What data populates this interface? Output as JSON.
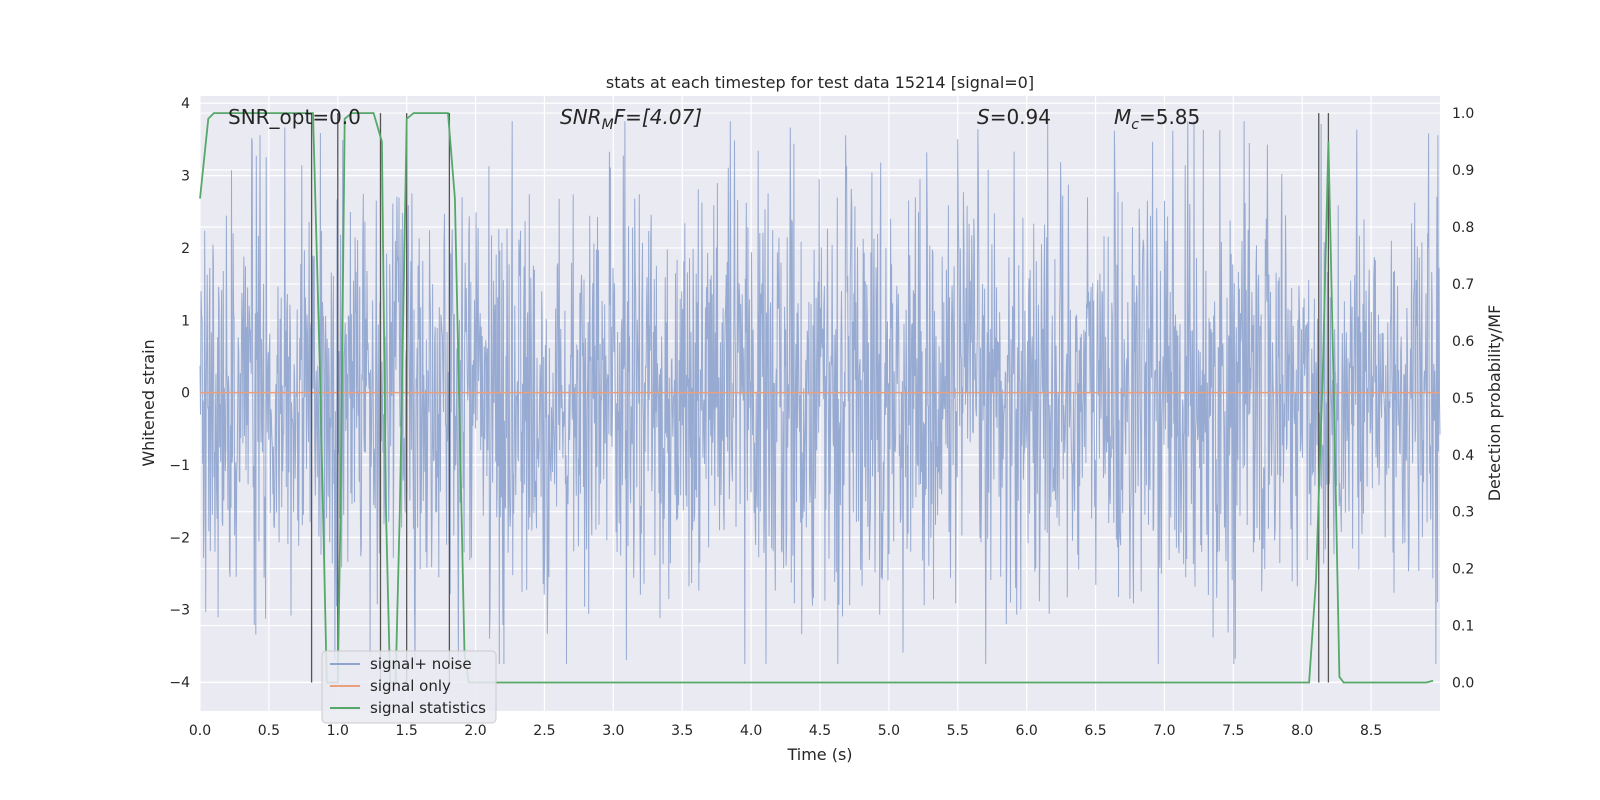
{
  "chart_data": {
    "type": "line",
    "title": "stats at each timestep for test data 15214 [signal=0]",
    "xlabel": "Time (s)",
    "ylabel": "Whitened strain",
    "y2label": "Detection probability/MF",
    "xlim": [
      0.0,
      9.0
    ],
    "ylim": [
      -4.4,
      4.1
    ],
    "y2lim": [
      -0.05,
      1.03
    ],
    "x_ticks": [
      "0.0",
      "0.5",
      "1.0",
      "1.5",
      "2.0",
      "2.5",
      "3.0",
      "3.5",
      "4.0",
      "4.5",
      "5.0",
      "5.5",
      "6.0",
      "6.5",
      "7.0",
      "7.5",
      "8.0",
      "8.5"
    ],
    "y_ticks": [
      "4",
      "3",
      "2",
      "1",
      "0",
      "−1",
      "−2",
      "−3",
      "−4"
    ],
    "y2_ticks": [
      "1.0",
      "0.9",
      "0.8",
      "0.7",
      "0.6",
      "0.5",
      "0.4",
      "0.3",
      "0.2",
      "0.1",
      "0.0"
    ],
    "grid": true,
    "legend_position": "lower-left",
    "annotations": {
      "snr_opt": "SNR_opt=0.0",
      "snr_mf_symbol": "SNR",
      "snr_mf_sub": "M",
      "snr_mf_rest": "F=[4.07]",
      "s_symbol": "S",
      "s_rest": "=0.94",
      "mc_symbol": "M",
      "mc_sub": "c",
      "mc_rest": "=5.85"
    },
    "series": [
      {
        "name": "signal+ noise",
        "color": "#8ea3cd",
        "axis": "left",
        "description_amplitude": {
          "typical_envelope": 1.7,
          "peak_max": 3.75,
          "peak_min": -3.75
        }
      },
      {
        "name": "signal only",
        "color": "#e8a07e",
        "axis": "left",
        "x": [
          0.0,
          9.0
        ],
        "y": [
          0.0,
          0.0
        ]
      },
      {
        "name": "signal statistics",
        "color": "#55a868",
        "axis": "right",
        "x": [
          0.0,
          0.06,
          0.1,
          0.2,
          0.3,
          0.4,
          0.5,
          0.6,
          0.7,
          0.78,
          0.82,
          0.87,
          0.92,
          0.96,
          1.0,
          1.02,
          1.05,
          1.1,
          1.15,
          1.2,
          1.26,
          1.32,
          1.35,
          1.38,
          1.42,
          1.45,
          1.5,
          1.55,
          1.6,
          1.7,
          1.8,
          1.85,
          1.92,
          1.95,
          2.0,
          3.0,
          4.0,
          5.0,
          6.0,
          7.0,
          8.0,
          8.05,
          8.1,
          8.15,
          8.19,
          8.23,
          8.27,
          8.3,
          8.4,
          8.6,
          8.8,
          8.9,
          8.95
        ],
        "y": [
          0.85,
          0.99,
          1.0,
          1.0,
          1.0,
          1.0,
          1.0,
          1.0,
          1.0,
          1.0,
          1.0,
          0.55,
          0.0,
          0.0,
          0.0,
          0.3,
          0.99,
          1.0,
          1.0,
          1.0,
          1.0,
          0.95,
          0.3,
          0.0,
          0.0,
          0.3,
          0.99,
          1.0,
          1.0,
          1.0,
          1.0,
          0.85,
          0.05,
          0.0,
          0.0,
          0.0,
          0.0,
          0.0,
          0.0,
          0.0,
          0.0,
          0.0,
          0.18,
          0.55,
          0.95,
          0.5,
          0.01,
          0.0,
          0.0,
          0.0,
          0.0,
          0.0,
          0.003
        ]
      }
    ],
    "detection_markers_x": [
      0.81,
      1.0,
      1.31,
      1.5,
      1.81,
      8.12,
      8.19
    ],
    "marker_color": "#555555"
  }
}
